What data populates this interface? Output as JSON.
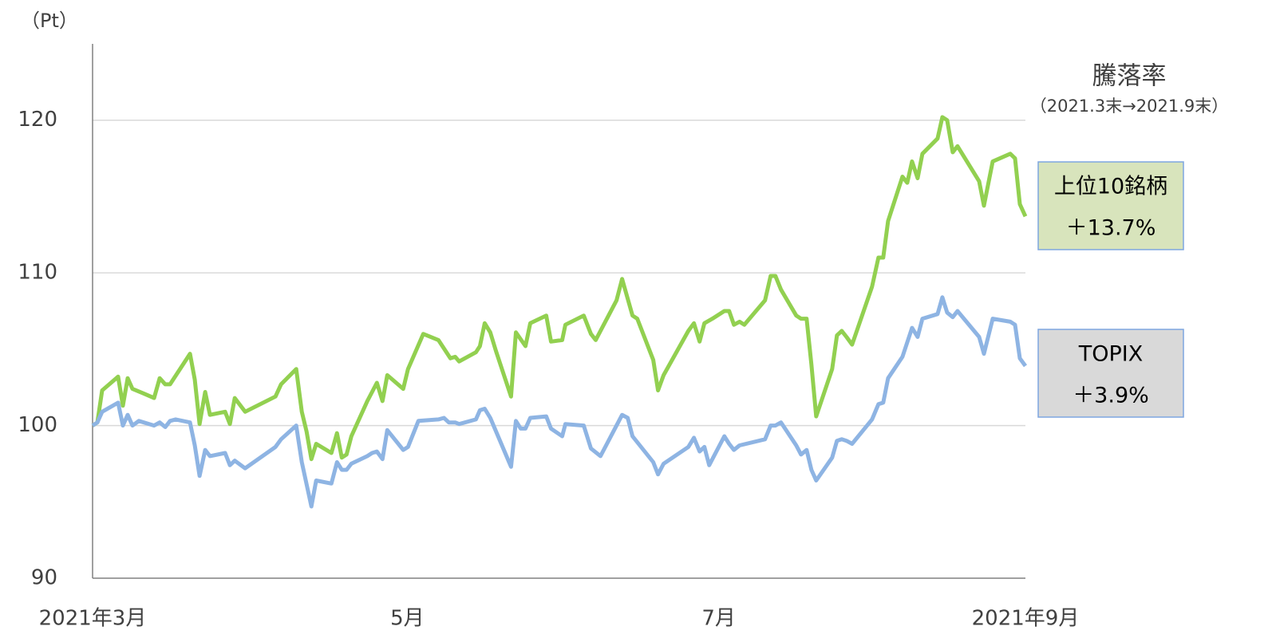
{
  "chart_data": {
    "type": "line",
    "unit_label": "（Pt）",
    "legend_title": "騰落率",
    "legend_subtitle": "（2021.3末→2021.9末）",
    "xlim": [
      0,
      1168
    ],
    "xticks": [
      {
        "value": 0,
        "label": "2021年3月"
      },
      {
        "value": 394,
        "label": "5月"
      },
      {
        "value": 784,
        "label": "7月"
      },
      {
        "value": 1168,
        "label": "2021年9月"
      }
    ],
    "ylim": [
      90,
      125
    ],
    "yticks": [
      90,
      100,
      110,
      120
    ],
    "grid": true,
    "series": [
      {
        "name": "上位10銘柄",
        "change": "＋13.7%",
        "color": "#92d050",
        "box_color": "#d8e4bc",
        "x": [
          0,
          6,
          12,
          32,
          38,
          44,
          50,
          64,
          77,
          84,
          91,
          97,
          122,
          128,
          134,
          141,
          147,
          166,
          172,
          178,
          191,
          229,
          236,
          255,
          262,
          268,
          274,
          280,
          299,
          306,
          312,
          318,
          324,
          344,
          356,
          363,
          369,
          389,
          395,
          414,
          433,
          448,
          454,
          459,
          480,
          485,
          491,
          498,
          505,
          524,
          530,
          542,
          548,
          568,
          574,
          588,
          592,
          615,
          624,
          630,
          656,
          663,
          676,
          682,
          702,
          708,
          715,
          746,
          753,
          760,
          766,
          776,
          791,
          797,
          803,
          810,
          816,
          842,
          849,
          855,
          862,
          881,
          887,
          894,
          900,
          906,
          926,
          932,
          938,
          944,
          951,
          976,
          984,
          990,
          996,
          1014,
          1020,
          1026,
          1033,
          1039,
          1058,
          1064,
          1070,
          1077,
          1083,
          1110,
          1116,
          1127,
          1149,
          1155,
          1161,
          1168
        ],
        "values": [
          100,
          100.2,
          102.3,
          103.2,
          101.3,
          103.1,
          102.4,
          102.1,
          101.8,
          103.1,
          102.7,
          102.7,
          104.7,
          103,
          100.1,
          102.2,
          100.7,
          100.9,
          100.1,
          101.8,
          100.9,
          101.9,
          102.7,
          103.7,
          100.9,
          99.6,
          97.8,
          98.8,
          98.2,
          99.5,
          97.9,
          98.1,
          99.3,
          101.6,
          102.8,
          101.6,
          103.3,
          102.4,
          103.7,
          106,
          105.6,
          104.4,
          104.5,
          104.2,
          104.8,
          105.2,
          106.7,
          106.1,
          104.9,
          101.9,
          106.1,
          105.2,
          106.7,
          107.2,
          105.5,
          105.6,
          106.6,
          107.2,
          106,
          105.6,
          108.2,
          109.6,
          107.2,
          107,
          104.3,
          102.3,
          103.3,
          106.2,
          106.7,
          105.5,
          106.7,
          107,
          107.5,
          107.5,
          106.6,
          106.8,
          106.6,
          108.2,
          109.8,
          109.8,
          108.9,
          107.2,
          107,
          107,
          104,
          100.6,
          103.7,
          105.9,
          106.2,
          105.8,
          105.3,
          109.1,
          111,
          111,
          113.4,
          116.3,
          115.9,
          117.3,
          116.2,
          117.8,
          118.8,
          120.2,
          120,
          117.9,
          118.3,
          116,
          114.4,
          117.3,
          117.8,
          117.5,
          114.5,
          113.7
        ]
      },
      {
        "name": "TOPIX",
        "change": "＋3.9%",
        "color": "#8eb4e3",
        "box_color": "#d9d9d9",
        "x": [
          0,
          6,
          12,
          32,
          38,
          44,
          50,
          58,
          77,
          84,
          91,
          97,
          104,
          122,
          128,
          134,
          141,
          147,
          166,
          172,
          178,
          191,
          229,
          236,
          255,
          262,
          274,
          280,
          299,
          306,
          312,
          318,
          324,
          344,
          350,
          356,
          363,
          369,
          389,
          395,
          408,
          433,
          440,
          446,
          454,
          459,
          480,
          485,
          491,
          498,
          524,
          530,
          536,
          542,
          548,
          568,
          574,
          588,
          592,
          615,
          624,
          636,
          663,
          670,
          676,
          702,
          708,
          715,
          746,
          753,
          760,
          766,
          772,
          791,
          797,
          803,
          810,
          842,
          849,
          855,
          862,
          881,
          887,
          894,
          900,
          906,
          926,
          932,
          938,
          944,
          951,
          976,
          984,
          990,
          996,
          1014,
          1026,
          1033,
          1039,
          1058,
          1064,
          1070,
          1077,
          1083,
          1110,
          1116,
          1127,
          1149,
          1155,
          1161,
          1168
        ],
        "values": [
          100,
          100.2,
          100.9,
          101.5,
          100,
          100.7,
          100,
          100.3,
          100,
          100.2,
          99.9,
          100.3,
          100.4,
          100.2,
          98.7,
          96.7,
          98.4,
          98,
          98.2,
          97.4,
          97.7,
          97.2,
          98.6,
          99.1,
          100,
          97.6,
          94.7,
          96.4,
          96.2,
          97.6,
          97.1,
          97.1,
          97.5,
          98,
          98.2,
          98.3,
          97.8,
          99.7,
          98.4,
          98.6,
          100.3,
          100.4,
          100.5,
          100.2,
          100.2,
          100.1,
          100.4,
          101,
          101.1,
          100.5,
          97.3,
          100.3,
          99.8,
          99.8,
          100.5,
          100.6,
          99.8,
          99.3,
          100.1,
          100,
          98.5,
          98,
          100.7,
          100.5,
          99.3,
          97.6,
          96.8,
          97.5,
          98.6,
          99.2,
          98.3,
          98.6,
          97.4,
          99.3,
          98.8,
          98.4,
          98.7,
          99.1,
          100,
          100,
          100.2,
          98.7,
          98.1,
          98.4,
          97.1,
          96.4,
          97.9,
          99,
          99.1,
          99,
          98.8,
          100.4,
          101.4,
          101.5,
          103.1,
          104.5,
          106.4,
          105.8,
          107,
          107.3,
          108.4,
          107.4,
          107.1,
          107.5,
          105.8,
          104.7,
          107,
          106.8,
          106.6,
          104.4,
          103.9
        ]
      }
    ]
  }
}
